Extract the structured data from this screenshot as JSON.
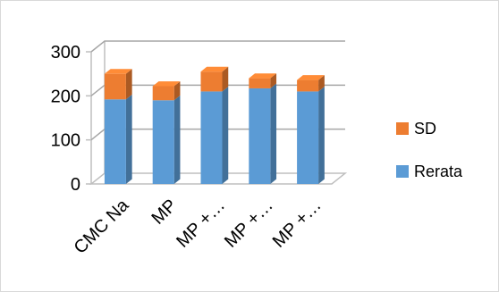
{
  "chart_data": {
    "type": "bar",
    "stacked": true,
    "three_d": true,
    "categories": [
      "CMC Na",
      "MP",
      "MP +…",
      "MP +…",
      "MP +…"
    ],
    "series": [
      {
        "name": "Rerata",
        "values": [
          192,
          190,
          210,
          217,
          210
        ],
        "color": "#5b9bd5"
      },
      {
        "name": "SD",
        "values": [
          58,
          32,
          45,
          23,
          26
        ],
        "color": "#ed7d31"
      }
    ],
    "yticks": [
      "0",
      "100",
      "200",
      "300"
    ],
    "ylim": [
      0,
      300
    ],
    "grid": true,
    "legend_position": "right"
  }
}
